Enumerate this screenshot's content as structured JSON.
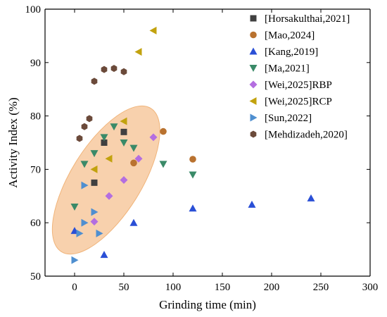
{
  "chart_data": {
    "type": "scatter",
    "title": "",
    "xlabel": "Grinding time (min)",
    "ylabel": "Activity Index (%)",
    "xlim": [
      -30,
      300
    ],
    "ylim": [
      50,
      100
    ],
    "xticks": [
      0,
      50,
      100,
      150,
      200,
      250,
      300
    ],
    "yticks": [
      50,
      60,
      70,
      80,
      90,
      100
    ],
    "grid": false,
    "legend_position": "top-right",
    "highlight_ellipse": {
      "center": [
        32,
        68
      ],
      "rx_data": 48,
      "ry_data": 15,
      "rotation_deg": -43,
      "color": "#f7c99f"
    },
    "series": [
      {
        "name": "[Horsakulthai,2021]",
        "marker": "square",
        "color": "#404040",
        "points": [
          [
            20,
            67.5
          ],
          [
            30,
            75
          ],
          [
            50,
            77
          ]
        ]
      },
      {
        "name": "[Mao,2024]",
        "marker": "circle",
        "color": "#b9722f",
        "points": [
          [
            60,
            71.2
          ],
          [
            90,
            77.1
          ],
          [
            120,
            71.9
          ]
        ]
      },
      {
        "name": "[Kang,2019]",
        "marker": "triangle-up",
        "color": "#2a4fd6",
        "points": [
          [
            0,
            58.5
          ],
          [
            30,
            54
          ],
          [
            60,
            60
          ],
          [
            120,
            62.7
          ],
          [
            180,
            63.4
          ],
          [
            240,
            64.6
          ]
        ]
      },
      {
        "name": "[Ma,2021]",
        "marker": "triangle-down",
        "color": "#3a8a68",
        "points": [
          [
            0,
            63
          ],
          [
            10,
            71
          ],
          [
            20,
            73
          ],
          [
            30,
            76
          ],
          [
            40,
            78
          ],
          [
            50,
            75
          ],
          [
            60,
            74
          ],
          [
            90,
            71
          ],
          [
            120,
            69
          ]
        ]
      },
      {
        "name": "[Wei,2025]RBP",
        "marker": "diamond",
        "color": "#b46ee0",
        "points": [
          [
            20,
            60.2
          ],
          [
            35,
            65
          ],
          [
            50,
            68
          ],
          [
            65,
            72
          ],
          [
            80,
            76
          ]
        ]
      },
      {
        "name": "[Wei,2025]RCP",
        "marker": "triangle-left",
        "color": "#c2a20e",
        "points": [
          [
            20,
            70
          ],
          [
            35,
            72
          ],
          [
            50,
            79
          ],
          [
            65,
            92
          ],
          [
            80,
            96
          ]
        ]
      },
      {
        "name": "[Sun,2022]",
        "marker": "triangle-right",
        "color": "#4f8fd0",
        "points": [
          [
            0,
            53
          ],
          [
            5,
            58
          ],
          [
            10,
            60
          ],
          [
            10,
            67
          ],
          [
            20,
            62
          ],
          [
            25,
            58
          ]
        ]
      },
      {
        "name": "[Mehdizadeh,2020]",
        "marker": "hexagon",
        "color": "#6b4a3a",
        "points": [
          [
            5,
            75.8
          ],
          [
            10,
            78
          ],
          [
            15,
            79.5
          ],
          [
            20,
            86.5
          ],
          [
            30,
            88.7
          ],
          [
            40,
            88.9
          ],
          [
            50,
            88.3
          ]
        ]
      }
    ]
  }
}
